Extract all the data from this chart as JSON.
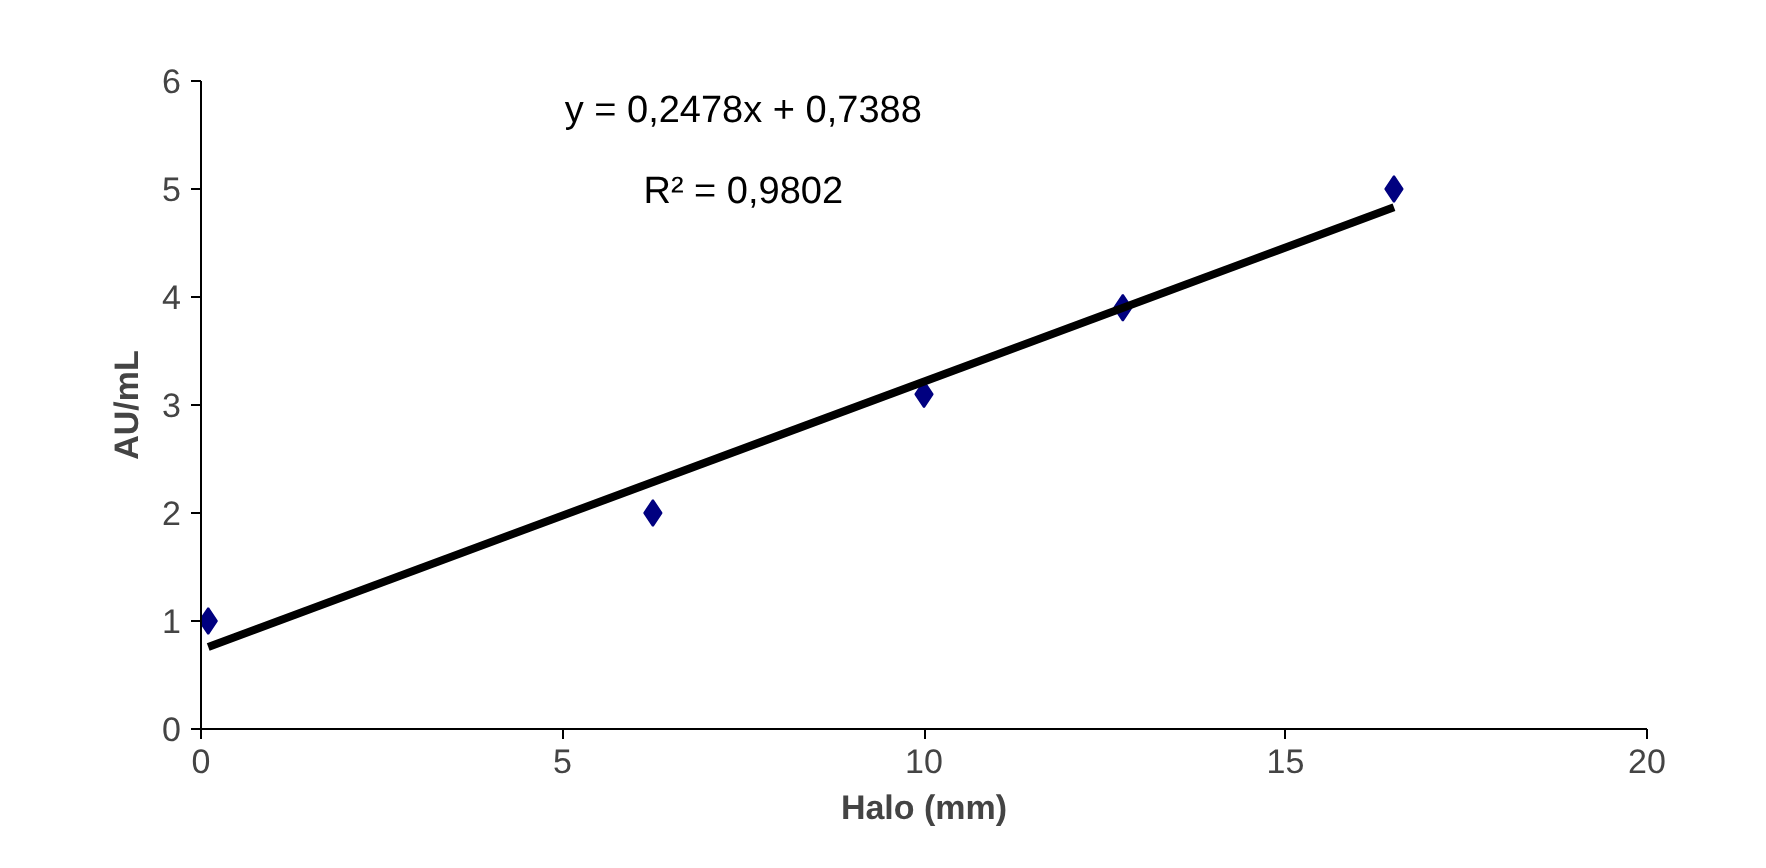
{
  "chart_data": {
    "type": "scatter",
    "xlabel": "Halo (mm)",
    "ylabel": "AU/mL",
    "xlim": [
      0,
      20
    ],
    "xticks": [
      0,
      5,
      10,
      15,
      20
    ],
    "ylim": [
      0,
      6
    ],
    "yticks": [
      0,
      1,
      2,
      3,
      4,
      5,
      6
    ],
    "grid": false,
    "series": [
      {
        "marker": "diamond",
        "color": "#000080",
        "x": [
          0.1,
          6.25,
          10,
          12.75,
          16.5
        ],
        "values": [
          1.0,
          2.0,
          3.1,
          3.9,
          5.0
        ]
      },
      {
        "type": "line",
        "color": "#000000",
        "x": [
          0.1,
          16.5
        ],
        "values": [
          0.76,
          4.83
        ]
      }
    ],
    "annotations": [
      "y = 0,2478x + 0,7388",
      "R² = 0,9802"
    ]
  }
}
